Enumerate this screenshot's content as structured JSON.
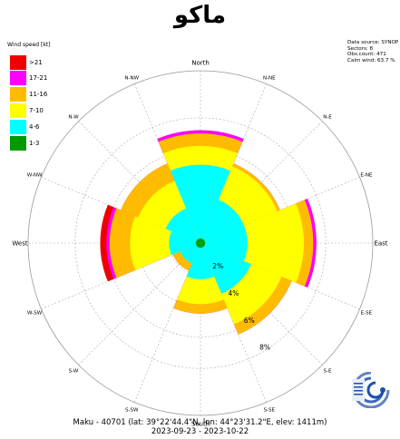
{
  "title": "ماکو",
  "legend": {
    "title": "Wind speed [kt]",
    "items": [
      {
        "label": ">21",
        "color": "#ee0000"
      },
      {
        "label": "17-21",
        "color": "#ff00ff"
      },
      {
        "label": "11-16",
        "color": "#ffbb00"
      },
      {
        "label": "7-10",
        "color": "#ffff00"
      },
      {
        "label": "4-6",
        "color": "#00ffff"
      },
      {
        "label": "1-3",
        "color": "#009900"
      }
    ]
  },
  "meta": {
    "source": "Data source: SYNOP",
    "sectors": "Sectors: 8",
    "obs_count": "Obs.count: 471",
    "calm": "Calm wind: 63.7 %"
  },
  "caption": {
    "line1": "Maku - 40701 (lat: 39°22'44.4\"N, lon: 44°23'31.2\"E, elev: 1411m)",
    "line2": "2023-09-23 - 2023-10-22"
  },
  "chart_data": {
    "type": "windrose",
    "sectors": 8,
    "directions": [
      "North",
      "N-NE",
      "N-E",
      "E-NE",
      "East",
      "E-SE",
      "S-E",
      "S-SE",
      "South",
      "S-SW",
      "S-W",
      "W-SW",
      "West",
      "W-NW",
      "N-W",
      "N-NW"
    ],
    "radial_unit": "%",
    "radial_ticks": [
      {
        "value": 2,
        "label": "2%"
      },
      {
        "value": 4,
        "label": "4%"
      },
      {
        "value": 6,
        "label": "6%"
      },
      {
        "value": 8,
        "label": "8%"
      }
    ],
    "rmax": 11,
    "categories": [
      "North",
      "N-E",
      "East",
      "S-E",
      "South",
      "S-W",
      "West",
      "N-W"
    ],
    "series": [
      {
        "name": "1-3",
        "values": [
          0.3,
          0.3,
          0.3,
          0.3,
          0.3,
          0.3,
          0.3,
          0.3
        ]
      },
      {
        "name": "4-6",
        "values": [
          5.0,
          3.0,
          3.0,
          3.5,
          2.3,
          1.4,
          2.0,
          2.4
        ]
      },
      {
        "name": "7-10",
        "values": [
          6.2,
          5.3,
          6.6,
          5.6,
          3.9,
          1.3,
          4.5,
          4.3
        ]
      },
      {
        "name": "11-16",
        "values": [
          7.0,
          5.5,
          7.2,
          6.3,
          4.5,
          1.9,
          5.8,
          5.5
        ]
      },
      {
        "name": "17-21",
        "values": [
          7.2,
          5.5,
          7.4,
          6.3,
          4.5,
          1.9,
          6.0,
          5.5
        ]
      },
      {
        "name": ">21",
        "values": [
          7.2,
          5.5,
          7.4,
          6.3,
          4.5,
          1.9,
          6.4,
          5.5
        ]
      }
    ]
  }
}
